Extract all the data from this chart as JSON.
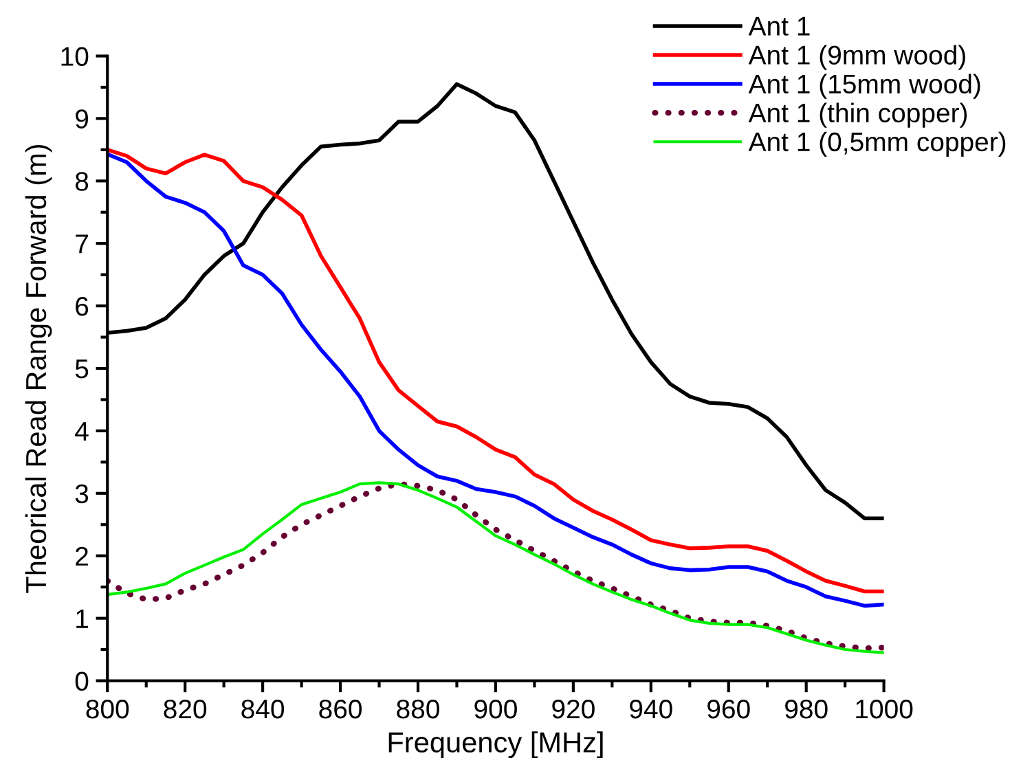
{
  "chart_data": {
    "type": "line",
    "xlabel": "Frequency [MHz]",
    "ylabel": "Theorical Read Range Forward (m)",
    "x": [
      800,
      805,
      810,
      815,
      820,
      825,
      830,
      835,
      840,
      845,
      850,
      855,
      860,
      865,
      870,
      875,
      880,
      885,
      890,
      895,
      900,
      905,
      910,
      915,
      920,
      925,
      930,
      935,
      940,
      945,
      950,
      955,
      960,
      965,
      970,
      975,
      980,
      985,
      990,
      995,
      1000
    ],
    "series": [
      {
        "name": "Ant 1",
        "color": "#000000",
        "line_style": "solid",
        "values": [
          5.57,
          5.6,
          5.65,
          5.8,
          6.1,
          6.5,
          6.8,
          7.0,
          7.5,
          7.9,
          8.25,
          8.55,
          8.58,
          8.6,
          8.65,
          8.95,
          8.95,
          9.2,
          9.55,
          9.4,
          9.2,
          9.1,
          8.65,
          8.0,
          7.35,
          6.7,
          6.1,
          5.55,
          5.1,
          4.75,
          4.55,
          4.45,
          4.43,
          4.38,
          4.2,
          3.9,
          3.45,
          3.05,
          2.85,
          2.6,
          2.6
        ]
      },
      {
        "name": "Ant 1 (9mm wood)",
        "color": "#ff0000",
        "line_style": "solid",
        "values": [
          8.5,
          8.4,
          8.2,
          8.12,
          8.3,
          8.42,
          8.32,
          8.0,
          7.9,
          7.7,
          7.45,
          6.8,
          6.3,
          5.8,
          5.1,
          4.65,
          4.4,
          4.15,
          4.07,
          3.9,
          3.7,
          3.58,
          3.3,
          3.15,
          2.9,
          2.72,
          2.58,
          2.42,
          2.25,
          2.18,
          2.12,
          2.13,
          2.15,
          2.15,
          2.08,
          1.92,
          1.75,
          1.6,
          1.52,
          1.43,
          1.43
        ]
      },
      {
        "name": "Ant 1 (15mm wood)",
        "color": "#0000ff",
        "line_style": "solid",
        "values": [
          8.43,
          8.3,
          8.0,
          7.75,
          7.65,
          7.5,
          7.2,
          6.65,
          6.5,
          6.2,
          5.7,
          5.3,
          4.95,
          4.55,
          4.0,
          3.7,
          3.45,
          3.27,
          3.2,
          3.07,
          3.02,
          2.95,
          2.8,
          2.6,
          2.45,
          2.3,
          2.18,
          2.02,
          1.88,
          1.8,
          1.77,
          1.78,
          1.82,
          1.82,
          1.75,
          1.6,
          1.5,
          1.35,
          1.28,
          1.2,
          1.22
        ]
      },
      {
        "name": "Ant 1 (thin copper)",
        "color": "#660033",
        "line_style": "dotted",
        "values": [
          1.6,
          1.4,
          1.3,
          1.32,
          1.45,
          1.55,
          1.7,
          1.85,
          2.05,
          2.3,
          2.5,
          2.65,
          2.8,
          2.95,
          3.08,
          3.15,
          3.12,
          3.05,
          2.9,
          2.65,
          2.42,
          2.25,
          2.08,
          1.92,
          1.75,
          1.6,
          1.48,
          1.35,
          1.22,
          1.12,
          1.0,
          0.95,
          0.93,
          0.93,
          0.88,
          0.8,
          0.68,
          0.6,
          0.55,
          0.52,
          0.53
        ]
      },
      {
        "name": "Ant 1 (0,5mm copper)",
        "color": "#00ee00",
        "line_style": "solid",
        "values": [
          1.38,
          1.42,
          1.48,
          1.55,
          1.72,
          1.85,
          1.98,
          2.1,
          2.35,
          2.58,
          2.82,
          2.92,
          3.02,
          3.15,
          3.17,
          3.15,
          3.05,
          2.92,
          2.78,
          2.55,
          2.32,
          2.18,
          2.02,
          1.87,
          1.7,
          1.55,
          1.42,
          1.3,
          1.2,
          1.08,
          0.97,
          0.92,
          0.9,
          0.9,
          0.85,
          0.75,
          0.65,
          0.57,
          0.5,
          0.47,
          0.45
        ]
      }
    ],
    "xlim": [
      800,
      1000
    ],
    "ylim": [
      0,
      10
    ],
    "xticks": [
      800,
      {
        "value": 810,
        "label": null
      },
      820,
      {
        "value": 830,
        "label": null
      },
      840,
      {
        "value": 850,
        "label": null
      },
      860,
      {
        "value": 870,
        "label": null
      },
      880,
      {
        "value": 890,
        "label": null
      },
      900,
      {
        "value": 910,
        "label": null
      },
      920,
      {
        "value": 930,
        "label": null
      },
      940,
      {
        "value": 950,
        "label": null
      },
      960,
      {
        "value": 970,
        "label": null
      },
      980,
      {
        "value": 990,
        "label": null
      },
      1000
    ],
    "yticks": [
      0,
      {
        "value": 0.5,
        "label": null
      },
      1,
      {
        "value": 1.5,
        "label": null
      },
      2,
      {
        "value": 2.5,
        "label": null
      },
      3,
      {
        "value": 3.5,
        "label": null
      },
      4,
      {
        "value": 4.5,
        "label": null
      },
      5,
      {
        "value": 5.5,
        "label": null
      },
      6,
      {
        "value": 6.5,
        "label": null
      },
      7,
      {
        "value": 7.5,
        "label": null
      },
      8,
      {
        "value": 8.5,
        "label": null
      },
      9,
      {
        "value": 9.5,
        "label": null
      },
      10
    ],
    "grid": false,
    "legend": "top right",
    "marker": "none"
  }
}
